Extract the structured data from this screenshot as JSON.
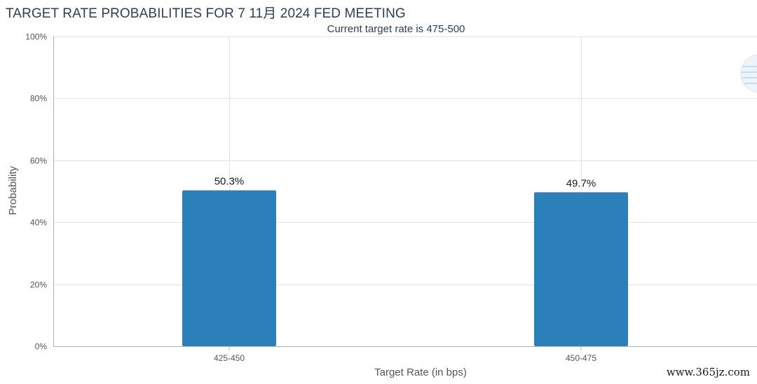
{
  "title": "TARGET RATE PROBABILITIES FOR 7 11月 2024 FED MEETING",
  "subtitle": "Current target rate is 475-500",
  "watermark": "www.365jz.com",
  "colors": {
    "bar": "#2b80b9",
    "title": "#2d3e56",
    "grid": "#e2e2e2",
    "axis": "#b0b0b0"
  },
  "chart_data": {
    "type": "bar",
    "title": "TARGET RATE PROBABILITIES FOR 7 11月 2024 FED MEETING",
    "subtitle": "Current target rate is 475-500",
    "xlabel": "Target Rate (in bps)",
    "ylabel": "Probability",
    "categories": [
      "425-450",
      "450-475"
    ],
    "values": [
      50.3,
      49.7
    ],
    "data_labels": [
      "50.3%",
      "49.7%"
    ],
    "ylim": [
      0,
      100
    ],
    "y_ticks": [
      "0%",
      "20%",
      "40%",
      "60%",
      "80%",
      "100%"
    ],
    "y_tick_values": [
      0,
      20,
      40,
      60,
      80,
      100
    ],
    "grid": true,
    "legend": "none"
  }
}
